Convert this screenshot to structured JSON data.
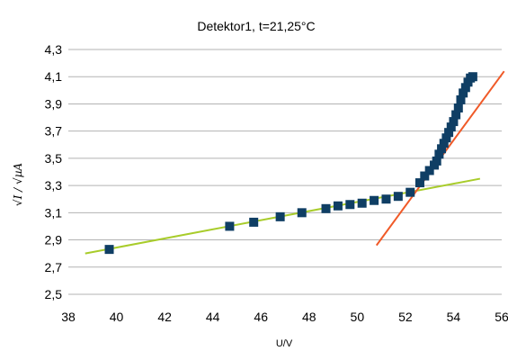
{
  "chart_data": {
    "type": "scatter",
    "title": "Detektor1, t=21,25°C",
    "xlabel": "U/V",
    "ylabel": "√I / √µA",
    "xlim": [
      38,
      56
    ],
    "ylim": [
      2.5,
      4.3
    ],
    "xticks": [
      38,
      40,
      42,
      44,
      46,
      48,
      50,
      52,
      54,
      56
    ],
    "xtick_labels": [
      "38",
      "40",
      "42",
      "44",
      "46",
      "48",
      "50",
      "52",
      "54",
      "56"
    ],
    "yticks": [
      2.5,
      2.7,
      2.9,
      3.1,
      3.3,
      3.5,
      3.7,
      3.9,
      4.1,
      4.3
    ],
    "ytick_labels": [
      "2,5",
      "2,7",
      "2,9",
      "3,1",
      "3,3",
      "3,5",
      "3,7",
      "3,9",
      "4,1",
      "4,3"
    ],
    "grid": "horizontal",
    "legend": "none",
    "marker_color": "#0f3e64",
    "series": [
      {
        "x": [
          39.7,
          44.7,
          45.7,
          46.8,
          47.7,
          48.7,
          49.2,
          49.7,
          50.2,
          50.7,
          51.2,
          51.7,
          52.2,
          52.6,
          52.8,
          53.0,
          53.2,
          53.3,
          53.4,
          53.5,
          53.6,
          53.7,
          53.8,
          53.9,
          54.0,
          54.1,
          54.2,
          54.3,
          54.4,
          54.5,
          54.6,
          54.7,
          54.8
        ],
        "y": [
          2.83,
          3.0,
          3.03,
          3.07,
          3.1,
          3.13,
          3.15,
          3.16,
          3.17,
          3.19,
          3.2,
          3.22,
          3.25,
          3.32,
          3.37,
          3.41,
          3.45,
          3.48,
          3.53,
          3.57,
          3.61,
          3.65,
          3.69,
          3.73,
          3.77,
          3.82,
          3.87,
          3.93,
          3.98,
          4.02,
          4.06,
          4.09,
          4.1
        ]
      }
    ],
    "fit_lines": [
      {
        "color": "#a8cc2a",
        "x": [
          38.7,
          55.1
        ],
        "y": [
          2.8,
          3.35
        ]
      },
      {
        "color": "#f05a28",
        "x": [
          50.8,
          56.1
        ],
        "y": [
          2.86,
          4.14
        ]
      }
    ]
  }
}
